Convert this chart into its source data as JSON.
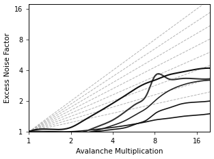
{
  "title": "",
  "xlabel": "Avalanche Multiplication",
  "ylabel": "Excess Noise Factor",
  "xlim": [
    1,
    20
  ],
  "ylim": [
    1,
    18
  ],
  "xticks": [
    1,
    2,
    4,
    8,
    16
  ],
  "yticks": [
    1,
    2,
    4,
    8,
    16
  ],
  "xticklabels": [
    "1",
    "2",
    "4",
    "8",
    "16"
  ],
  "yticklabels": [
    "1",
    "2",
    "4",
    "8",
    "16"
  ],
  "dashed_exponents": [
    1.0,
    0.9,
    0.8,
    0.7,
    0.6,
    0.5,
    0.4,
    0.3
  ],
  "dashed_colors": [
    "#aaaaaa",
    "#aaaaaa",
    "#aaaaaa",
    "#aaaaaa",
    "#aaaaaa",
    "#aaaaaa",
    "#aaaaaa",
    "#aaaaaa"
  ],
  "solid_lines": [
    {
      "color": "#111111",
      "lw": 1.2,
      "pts_x": [
        1,
        1.5,
        2,
        3,
        4,
        5,
        6,
        7,
        8,
        10,
        12,
        16,
        20
      ],
      "pts_y": [
        1,
        1.0,
        1.0,
        1.05,
        1.1,
        1.15,
        1.2,
        1.25,
        1.3,
        1.35,
        1.4,
        1.45,
        1.5
      ]
    },
    {
      "color": "#111111",
      "lw": 1.2,
      "pts_x": [
        1,
        1.5,
        2,
        3,
        4,
        5,
        6,
        7,
        8,
        10,
        12,
        16,
        20
      ],
      "pts_y": [
        1,
        0.98,
        0.97,
        1.0,
        1.05,
        1.1,
        1.2,
        1.3,
        1.5,
        1.7,
        1.85,
        1.95,
        2.0
      ]
    },
    {
      "color": "#222222",
      "lw": 1.2,
      "pts_x": [
        1,
        1.5,
        2,
        2.5,
        3,
        4,
        5,
        6,
        7,
        8,
        10,
        12,
        16,
        20
      ],
      "pts_y": [
        1,
        0.97,
        0.95,
        0.97,
        1.02,
        1.15,
        1.3,
        1.5,
        1.7,
        2.0,
        2.5,
        2.8,
        3.1,
        3.2
      ]
    },
    {
      "color": "#333333",
      "lw": 1.5,
      "pts_x": [
        1,
        1.5,
        2,
        2.5,
        3,
        4,
        5,
        6,
        7,
        8,
        9,
        10,
        12,
        16,
        20
      ],
      "pts_y": [
        1,
        0.97,
        0.95,
        1.0,
        1.1,
        1.3,
        1.6,
        1.9,
        2.3,
        3.5,
        3.6,
        3.3,
        3.3,
        3.3,
        3.3
      ]
    },
    {
      "color": "#111111",
      "lw": 1.5,
      "pts_x": [
        1,
        1.5,
        2,
        2.5,
        3,
        4,
        5,
        6,
        7,
        8,
        10,
        12,
        16,
        20
      ],
      "pts_y": [
        1,
        1.05,
        1.1,
        1.3,
        1.5,
        1.9,
        2.3,
        2.7,
        3.0,
        3.2,
        3.6,
        3.8,
        4.1,
        4.2
      ]
    }
  ],
  "figsize": [
    3.13,
    2.33
  ],
  "dpi": 100
}
